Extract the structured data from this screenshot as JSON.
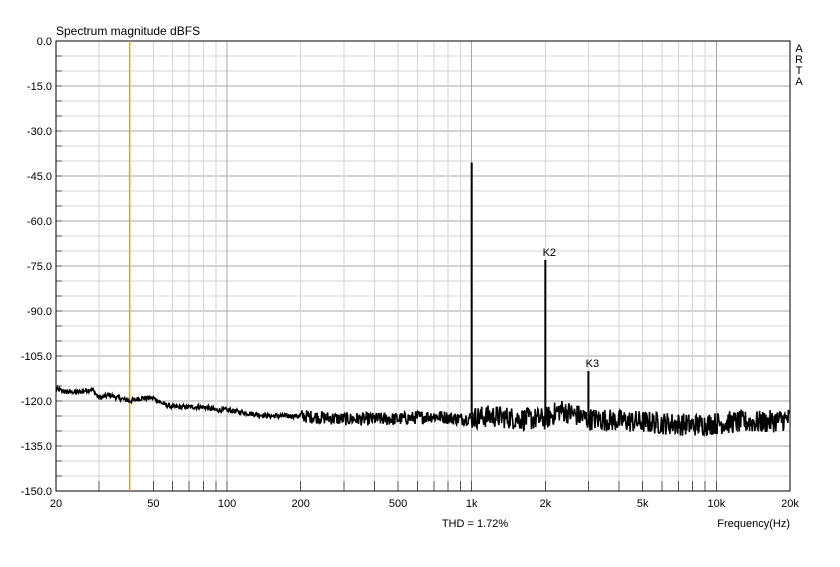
{
  "chart_data": {
    "type": "line",
    "title": "Spectrum magnitude dBFS",
    "xlabel": "Frequency(Hz)",
    "ylabel": "",
    "x_scale": "log",
    "xlim": [
      20,
      20000
    ],
    "ylim": [
      -150,
      0
    ],
    "grid": true,
    "y_ticks": [
      "0.0",
      "-15.0",
      "-30.0",
      "-45.0",
      "-60.0",
      "-75.0",
      "-90.0",
      "-105.0",
      "-120.0",
      "-135.0",
      "-150.0"
    ],
    "x_ticks": [
      {
        "value": 20,
        "label": "20"
      },
      {
        "value": 50,
        "label": "50"
      },
      {
        "value": 100,
        "label": "100"
      },
      {
        "value": 200,
        "label": "200"
      },
      {
        "value": 500,
        "label": "500"
      },
      {
        "value": 1000,
        "label": "1k"
      },
      {
        "value": 2000,
        "label": "2k"
      },
      {
        "value": 5000,
        "label": "5k"
      },
      {
        "value": 10000,
        "label": "10k"
      },
      {
        "value": 20000,
        "label": "20k"
      }
    ],
    "marker_frequency": 40,
    "noise_floor": {
      "x": [
        20,
        22,
        25,
        28,
        30,
        33,
        36,
        40,
        45,
        50,
        55,
        60,
        70,
        80,
        90,
        100,
        120,
        150,
        200,
        300,
        500,
        700,
        900,
        1200,
        1600,
        2000,
        2300,
        3000,
        5000,
        8000,
        12000,
        16000,
        20000
      ],
      "y": [
        -116,
        -117,
        -117,
        -116,
        -119,
        -118,
        -119,
        -120,
        -119,
        -119,
        -121,
        -122,
        -122,
        -122,
        -123,
        -123,
        -124,
        -125,
        -125,
        -126,
        -126,
        -125,
        -126,
        -125,
        -126,
        -126,
        -123,
        -126,
        -127,
        -128,
        -127,
        -127,
        -126
      ]
    },
    "peaks": [
      {
        "freq": 1000,
        "level": -40.5,
        "label": ""
      },
      {
        "freq": 2000,
        "level": -73,
        "label": "K2",
        "label_color": "#1aa31a"
      },
      {
        "freq": 3000,
        "level": -110,
        "label": "K3",
        "label_color": "#d42020"
      }
    ],
    "annotation": "THD = 1.72%",
    "annotation_color": "#d42020",
    "side_text": [
      "A",
      "R",
      "T",
      "A"
    ]
  }
}
